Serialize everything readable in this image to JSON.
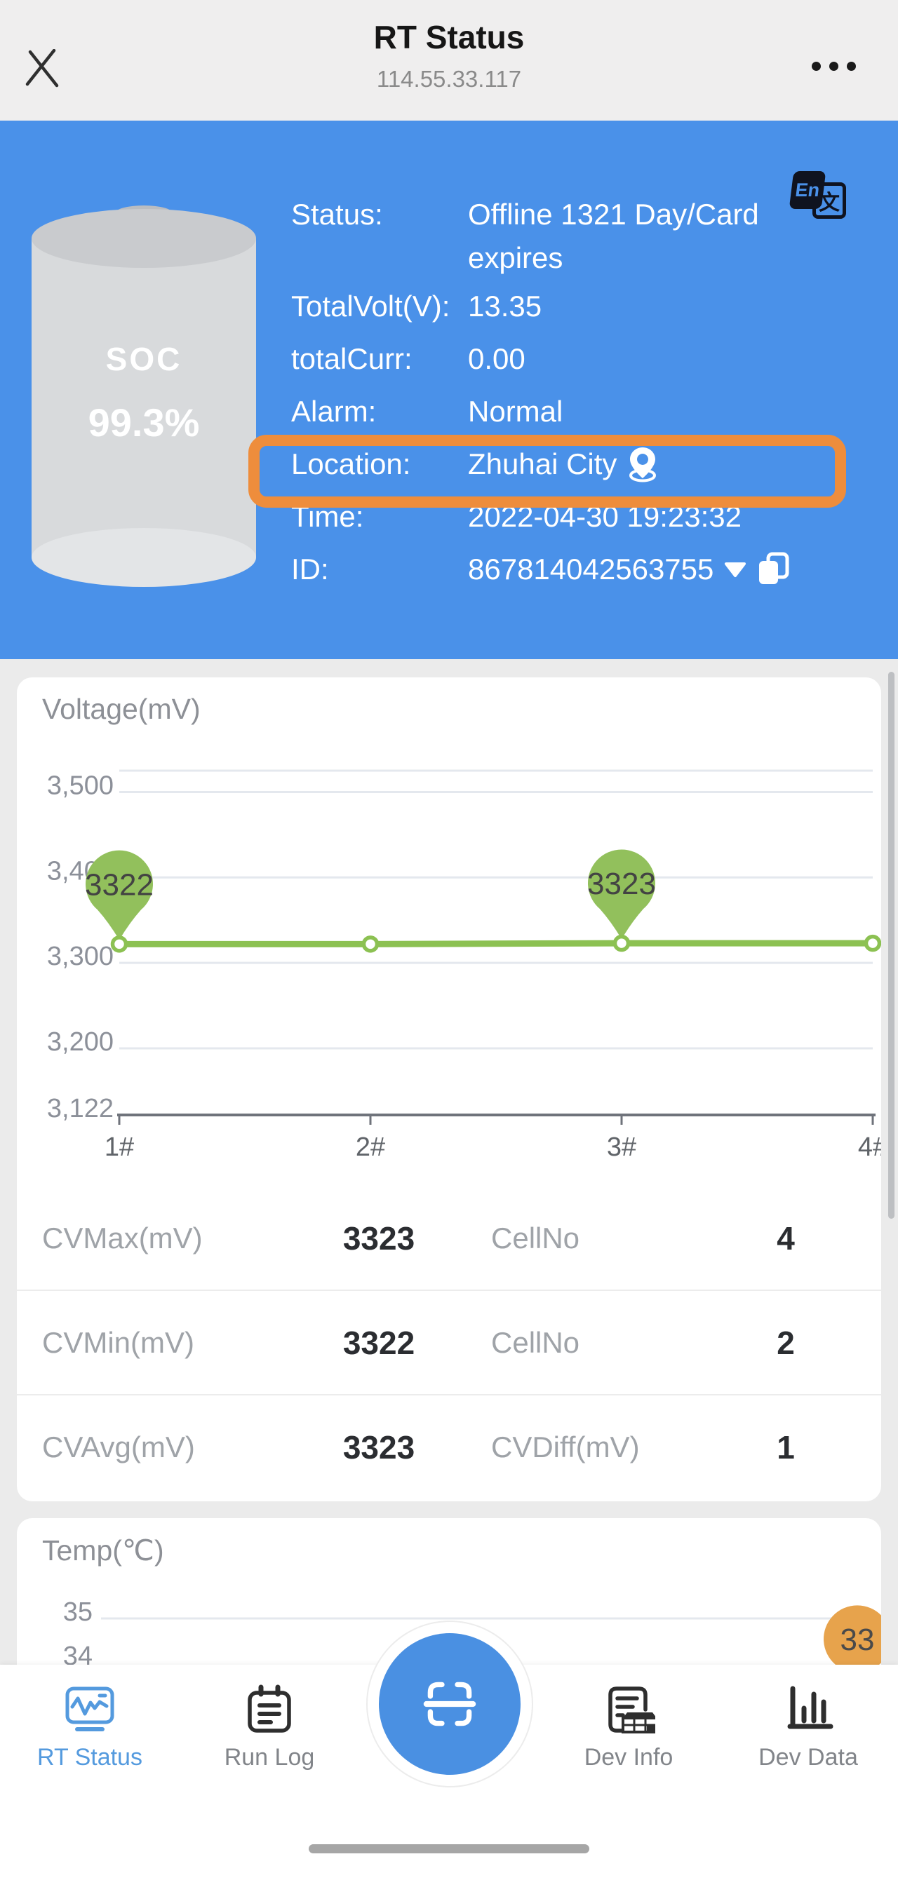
{
  "header": {
    "title": "RT Status",
    "subtitle": "114.55.33.117"
  },
  "hero": {
    "background": "#4a91e9",
    "soc_label": "SOC",
    "soc_value": "99.3%",
    "rows": {
      "status": {
        "label": "Status:",
        "value_lines": [
          "Offline 1321 Day/Card",
          "expires"
        ]
      },
      "total_volt": {
        "label": "TotalVolt(V):",
        "value": "13.35"
      },
      "total_curr": {
        "label": "totalCurr:",
        "value": "0.00"
      },
      "alarm": {
        "label": "Alarm:",
        "value": "Normal"
      },
      "location": {
        "label": "Location:",
        "value": "Zhuhai City",
        "highlighted": true
      },
      "time": {
        "label": "Time:",
        "value": "2022-04-30 19:23:32"
      },
      "id": {
        "label": "ID:",
        "value": "867814042563755"
      }
    },
    "highlight_color": "#ee8d3c",
    "translate_icon_text": {
      "en": "En",
      "zh": "文"
    }
  },
  "voltage_card": {
    "chart_data": {
      "type": "line",
      "title": "Voltage(mV)",
      "categories": [
        "1#",
        "2#",
        "3#",
        "4#"
      ],
      "values": [
        3322,
        3322,
        3323,
        3323
      ],
      "labeled_points": [
        {
          "category": "1#",
          "value": 3322
        },
        {
          "category": "3#",
          "value": 3323
        }
      ],
      "y_tick_labels": [
        "3,500",
        "3,400",
        "3,300",
        "3,200"
      ],
      "y_axis_min_label": "3,122",
      "ylim": [
        3122,
        3525
      ],
      "grid": true,
      "legend": false,
      "line_color": "#8cc152",
      "marker_color": "#92c05c"
    },
    "stats_rows": [
      {
        "k1": "CVMax(mV)",
        "v1": "3323",
        "k2": "CellNo",
        "v2": "4"
      },
      {
        "k1": "CVMin(mV)",
        "v1": "3322",
        "k2": "CellNo",
        "v2": "2"
      },
      {
        "k1": "CVAvg(mV)",
        "v1": "3323",
        "k2": "CVDiff(mV)",
        "v2": "1"
      }
    ]
  },
  "temp_card": {
    "chart_data": {
      "type": "line",
      "title": "Temp(℃)",
      "y_tick_labels": [
        "35",
        "34"
      ],
      "marked_value": 33,
      "marker_color": "#e7a34c"
    }
  },
  "tabbar": {
    "active_color": "#549ade",
    "items": [
      {
        "label": "RT Status",
        "active": true
      },
      {
        "label": "Run Log",
        "active": false
      },
      {
        "label": "Dev Info",
        "active": false
      },
      {
        "label": "Dev Data",
        "active": false
      }
    ]
  }
}
